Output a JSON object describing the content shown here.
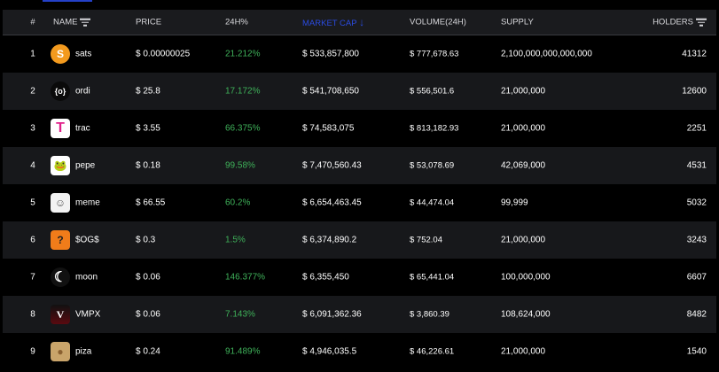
{
  "header": {
    "num": "#",
    "name": "NAME",
    "price": "PRICE",
    "change": "24H%",
    "mcap": "MARKET CAP",
    "mcap_arrow": "↓",
    "volume": "VOLUME(24H)",
    "supply": "SUPPLY",
    "holders": "HOLDERS"
  },
  "colors": {
    "accent": "#2a4be0",
    "positive": "#3fb25a"
  },
  "rows": [
    {
      "num": "1",
      "name": "sats",
      "icon": "S",
      "price": "$ 0.00000025",
      "change": "21.212%",
      "mcap": "$ 533,857,800",
      "volume": "$ 777,678.63",
      "supply": "2,100,000,000,000,000",
      "holders": "41312"
    },
    {
      "num": "2",
      "name": "ordi",
      "icon": "{o}",
      "price": "$ 25.8",
      "change": "17.172%",
      "mcap": "$ 541,708,650",
      "volume": "$ 556,501.6",
      "supply": "21,000,000",
      "holders": "12600"
    },
    {
      "num": "3",
      "name": "trac",
      "icon": "T",
      "price": "$ 3.55",
      "change": "66.375%",
      "mcap": "$ 74,583,075",
      "volume": "$ 813,182.93",
      "supply": "21,000,000",
      "holders": "2251"
    },
    {
      "num": "4",
      "name": "pepe",
      "icon": "🐸",
      "price": "$ 0.18",
      "change": "99.58%",
      "mcap": "$ 7,470,560.43",
      "volume": "$ 53,078.69",
      "supply": "42,069,000",
      "holders": "4531"
    },
    {
      "num": "5",
      "name": "meme",
      "icon": "☺",
      "price": "$ 66.55",
      "change": "60.2%",
      "mcap": "$ 6,654,463.45",
      "volume": "$ 44,474.04",
      "supply": "99,999",
      "holders": "5032"
    },
    {
      "num": "6",
      "name": "$OG$",
      "icon": "?",
      "price": "$ 0.3",
      "change": "1.5%",
      "mcap": "$ 6,374,890.2",
      "volume": "$ 752.04",
      "supply": "21,000,000",
      "holders": "3243"
    },
    {
      "num": "7",
      "name": "moon",
      "icon": "☾",
      "price": "$ 0.06",
      "change": "146.377%",
      "mcap": "$ 6,355,450",
      "volume": "$ 65,441.04",
      "supply": "100,000,000",
      "holders": "6607"
    },
    {
      "num": "8",
      "name": "VMPX",
      "icon": "V",
      "price": "$ 0.06",
      "change": "7.143%",
      "mcap": "$ 6,091,362.36",
      "volume": "$ 3,860.39",
      "supply": "108,624,000",
      "holders": "8482"
    },
    {
      "num": "9",
      "name": "piza",
      "icon": "●",
      "price": "$ 0.24",
      "change": "91.489%",
      "mcap": "$ 4,946,035.5",
      "volume": "$ 46,226.61",
      "supply": "21,000,000",
      "holders": "1540"
    }
  ]
}
